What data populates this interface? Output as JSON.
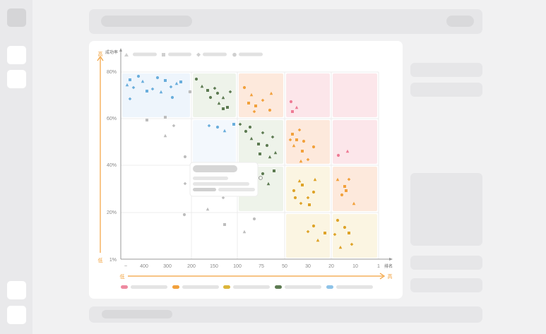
{
  "chart_data": {
    "type": "scatter",
    "ylabel": "成功率",
    "xlabel": "排名",
    "y_ticks": [
      "80%",
      "60%",
      "40%",
      "20%",
      "1%"
    ],
    "x_ticks": [
      "~",
      "400",
      "300",
      "200",
      "150",
      "100",
      "75",
      "50",
      "30",
      "20",
      "10",
      "1"
    ],
    "y_arrow_top": "高",
    "y_arrow_bottom": "低",
    "x_arrow_left": "低",
    "x_arrow_right": "高",
    "grid": true,
    "legend_position": "top-left",
    "zone_colors": {
      "blue": "#eef5fc",
      "green": "#eef3ea",
      "orange": "#fde9dc",
      "pink": "#fce6ea",
      "yellow": "#fbf5e2",
      "light_blue": "#f3f8fd"
    },
    "point_colors": {
      "blue": "#6aaedc",
      "green": "#5d7b52",
      "orange": "#f2a13c",
      "pink": "#ee7b95",
      "yellow": "#dea328",
      "gray": "#bdbdbd"
    },
    "marker_shapes": [
      "triangle",
      "square",
      "diamond",
      "circle"
    ],
    "footer_colors": [
      "#ee8aa0",
      "#f2a13c",
      "#dcb53a",
      "#5d7b52",
      "#8ec3e8"
    ]
  }
}
